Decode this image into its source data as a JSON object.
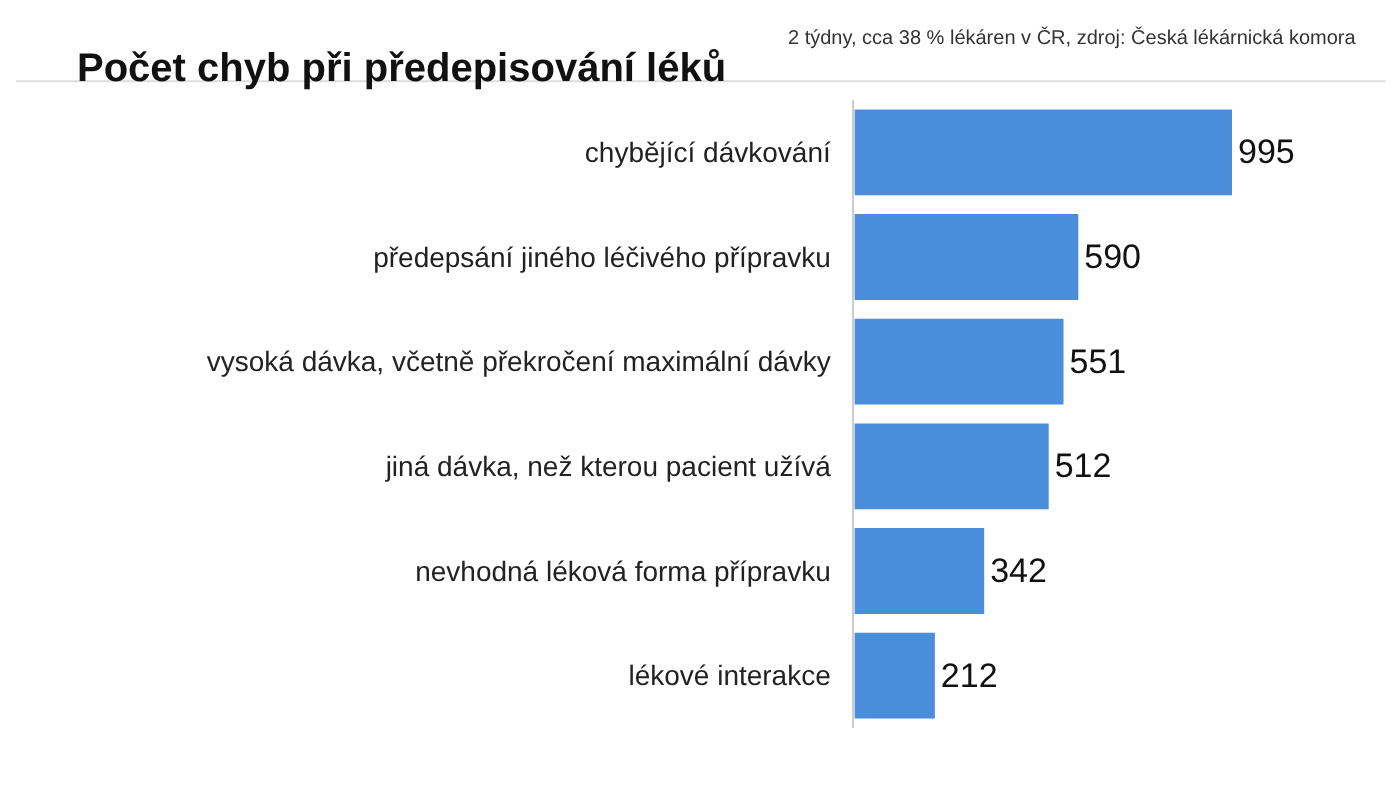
{
  "chart_data": {
    "type": "bar",
    "orientation": "horizontal",
    "title": "Počet chyb při předepisování léků",
    "subtitle": "2 týdny, cca 38 % lékáren v ČR, zdroj: Česká lékárnická komora",
    "categories": [
      "chybějící dávkování",
      "předepsání jiného léčivého přípravku",
      "vysoká dávka, včetně překročení maximální dávky",
      "jiná dávka, než kterou pacient užívá",
      "nevhodná léková forma přípravku",
      "lékové interakce"
    ],
    "values": [
      995,
      590,
      551,
      512,
      342,
      212
    ],
    "color": "#4a8ddb",
    "data_labels": true
  }
}
